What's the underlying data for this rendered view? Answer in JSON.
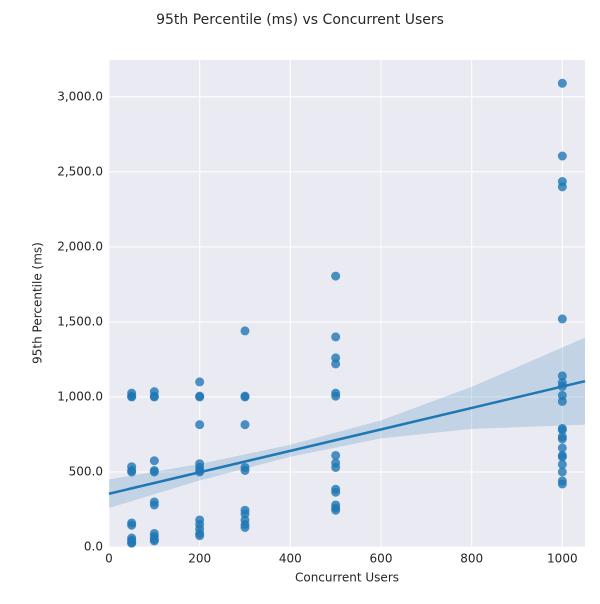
{
  "chart_data": {
    "type": "regplot",
    "title": "95th Percentile (ms) vs Concurrent Users",
    "x_label": "Concurrent Users",
    "y_label": "95th Percentile (ms)",
    "xlim": [
      0,
      1050
    ],
    "ylim": [
      0,
      3245
    ],
    "xticks": [
      0,
      200,
      400,
      600,
      800,
      1000
    ],
    "yticks": [
      {
        "value": 0,
        "label": "0.0"
      },
      {
        "value": 500,
        "label": "500.0"
      },
      {
        "value": 1000,
        "label": "1,000.0"
      },
      {
        "value": 1500,
        "label": "1,500.0"
      },
      {
        "value": 2000,
        "label": "2,000.0"
      },
      {
        "value": 2500,
        "label": "2,500.0"
      },
      {
        "value": 3000,
        "label": "3,000.0"
      }
    ],
    "grid": true,
    "color": "#1f77b4",
    "series": [
      {
        "x": [
          50,
          50,
          50,
          50,
          50,
          50,
          50,
          50,
          50,
          50,
          50,
          50,
          100,
          100,
          100,
          100,
          100,
          100,
          100,
          100,
          100,
          100,
          100,
          100,
          200,
          200,
          200,
          200,
          200,
          200,
          200,
          200,
          200,
          200,
          200,
          200,
          200,
          300,
          300,
          300,
          300,
          300,
          300,
          300,
          300,
          300,
          300,
          300,
          500,
          500,
          500,
          500,
          500,
          500,
          500,
          500,
          500,
          500,
          500,
          500,
          500,
          500,
          1000,
          1000,
          1000,
          1000,
          1000,
          1000,
          1000,
          1000,
          1000,
          1000,
          1000,
          1000,
          1000,
          1000,
          1000,
          1000,
          1000,
          1000,
          1000,
          1000,
          1000
        ],
        "values": [
          1025,
          1005,
          1000,
          535,
          510,
          500,
          160,
          145,
          60,
          45,
          30,
          25,
          1035,
          1005,
          1000,
          575,
          510,
          500,
          300,
          280,
          90,
          70,
          50,
          40,
          1100,
          1005,
          1000,
          815,
          555,
          530,
          510,
          500,
          180,
          150,
          120,
          90,
          75,
          1440,
          1005,
          1000,
          815,
          530,
          510,
          245,
          220,
          180,
          150,
          130,
          1805,
          1400,
          1260,
          1220,
          1025,
          1005,
          610,
          560,
          530,
          385,
          365,
          280,
          260,
          245,
          3090,
          2605,
          2435,
          2400,
          1520,
          1140,
          1095,
          1070,
          1010,
          970,
          790,
          780,
          735,
          720,
          660,
          610,
          600,
          550,
          500,
          440,
          420
        ]
      }
    ],
    "trend": {
      "x": [
        0,
        1050
      ],
      "values": [
        355,
        1105
      ]
    },
    "band": {
      "x": [
        0,
        200,
        400,
        600,
        800,
        1050
      ],
      "lower": [
        260,
        443,
        601,
        724,
        787,
        815
      ],
      "upper": [
        450,
        553,
        681,
        844,
        1067,
        1395
      ]
    }
  }
}
